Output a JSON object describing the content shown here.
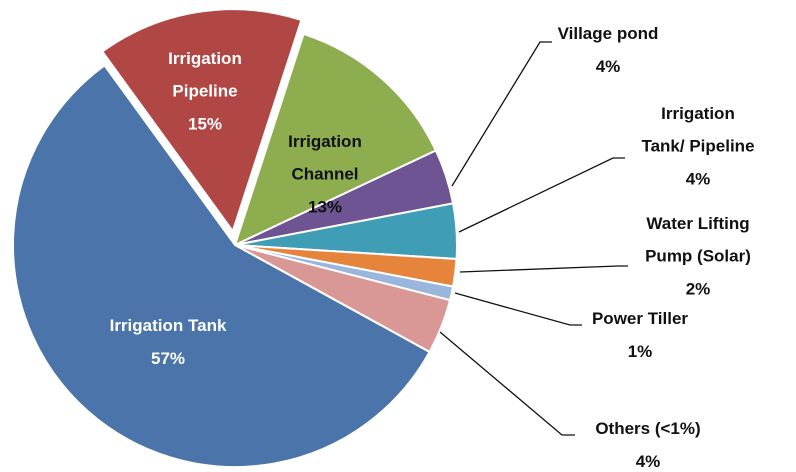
{
  "chart_data": {
    "type": "pie",
    "categories": [
      "Irrigation Channel",
      "Village pond",
      "Irrigation Tank/ Pipeline",
      "Water Lifting Pump (Solar)",
      "Power Tiller",
      "Others (<1%)",
      "Irrigation Tank",
      "Irrigation Pipeline"
    ],
    "values": [
      13,
      4,
      4,
      2,
      1,
      4,
      57,
      15
    ],
    "value_labels": [
      "13%",
      "4%",
      "4%",
      "2%",
      "1%",
      "4%",
      "57%",
      "15%"
    ],
    "colors": [
      "#8ead4f",
      "#6f5494",
      "#3f9db5",
      "#e5843a",
      "#9bb6dd",
      "#d99795",
      "#4a74aa",
      "#b14744"
    ],
    "exploded": [
      "Irrigation Pipeline"
    ]
  }
}
